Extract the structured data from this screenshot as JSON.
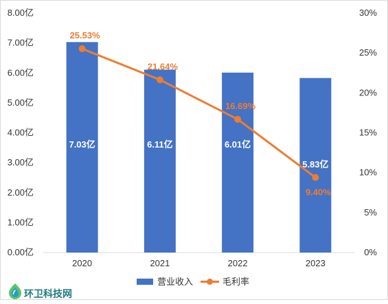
{
  "chart_data": {
    "type": "bar",
    "categories": [
      "2020",
      "2021",
      "2022",
      "2023"
    ],
    "series": [
      {
        "name": "营业收入",
        "type": "bar",
        "axis": "left",
        "values": [
          7.03,
          6.11,
          6.01,
          5.83
        ],
        "labels": [
          "7.03亿",
          "6.11亿",
          "6.01亿",
          "5.83亿"
        ]
      },
      {
        "name": "毛利率",
        "type": "line",
        "axis": "right",
        "values": [
          25.53,
          21.64,
          16.69,
          9.4
        ],
        "labels": [
          "25.53%",
          "21.64%",
          "16.69%",
          "9.40%"
        ]
      }
    ],
    "left_axis": {
      "ylim": [
        0,
        8
      ],
      "ticks": [
        "0.00亿",
        "1.00亿",
        "2.00亿",
        "3.00亿",
        "4.00亿",
        "5.00亿",
        "6.00亿",
        "7.00亿",
        "8.00亿"
      ]
    },
    "right_axis": {
      "ylim": [
        0,
        30
      ],
      "ticks": [
        "0%",
        "5%",
        "10%",
        "15%",
        "20%",
        "25%",
        "30%"
      ]
    },
    "legend": {
      "placement": "bottom-center",
      "items": [
        "营业收入",
        "毛利率"
      ]
    },
    "grid": false,
    "colors": {
      "bar": "#4472c4",
      "line": "#ed7d31",
      "axis": "#d9d9d9",
      "text": "#333333",
      "bar_label": "#ffffff"
    }
  },
  "watermark": {
    "text": "环卫科技网",
    "logo": "leaf-drop-icon"
  }
}
